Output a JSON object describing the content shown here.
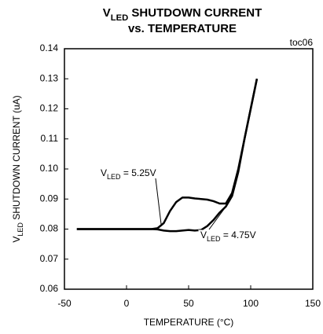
{
  "chart_data": {
    "type": "line",
    "title": [
      [
        {
          "text": "V"
        },
        {
          "text": "LED",
          "sub": true
        },
        {
          "text": " SHUTDOWN CURRENT"
        }
      ],
      [
        {
          "text": "vs. TEMPERATURE"
        }
      ]
    ],
    "figure_code": "toc06",
    "xlabel": "TEMPERATURE (°C)",
    "ylabel": [
      {
        "text": "V"
      },
      {
        "text": "LED",
        "sub": true
      },
      {
        "text": " SHUTDOWN CURRENT (uA)"
      }
    ],
    "x": [
      -40,
      0,
      20,
      25,
      30,
      35,
      40,
      45,
      50,
      55,
      60,
      65,
      70,
      75,
      80,
      85,
      90,
      95,
      100,
      105
    ],
    "series": [
      {
        "label": [
          {
            "text": "V"
          },
          {
            "text": "LED",
            "sub": true
          },
          {
            "text": " = 5.25V"
          }
        ],
        "color": "#000000",
        "values": [
          0.08,
          0.08,
          0.08,
          0.0803,
          0.082,
          0.086,
          0.089,
          0.0905,
          0.0905,
          0.0902,
          0.09,
          0.0898,
          0.0893,
          0.0885,
          0.0885,
          0.092,
          0.1,
          0.11,
          0.12,
          0.13
        ]
      },
      {
        "label": [
          {
            "text": "V"
          },
          {
            "text": "LED",
            "sub": true
          },
          {
            "text": " = 4.75V"
          }
        ],
        "color": "#000000",
        "values": [
          0.08,
          0.08,
          0.08,
          0.0799,
          0.0795,
          0.0793,
          0.0793,
          0.0795,
          0.0797,
          0.0795,
          0.0797,
          0.081,
          0.083,
          0.0855,
          0.0875,
          0.091,
          0.099,
          0.11,
          0.12,
          0.13
        ]
      }
    ],
    "xlim": [
      -50,
      150
    ],
    "xticks": [
      -50,
      0,
      50,
      100,
      150
    ],
    "ylim": [
      0.06,
      0.14
    ],
    "yticks": [
      0.06,
      0.07,
      0.08,
      0.09,
      {
        "value": 0.1,
        "label": "0.10"
      },
      0.11,
      0.12,
      0.13,
      0.14
    ],
    "grid": false
  }
}
